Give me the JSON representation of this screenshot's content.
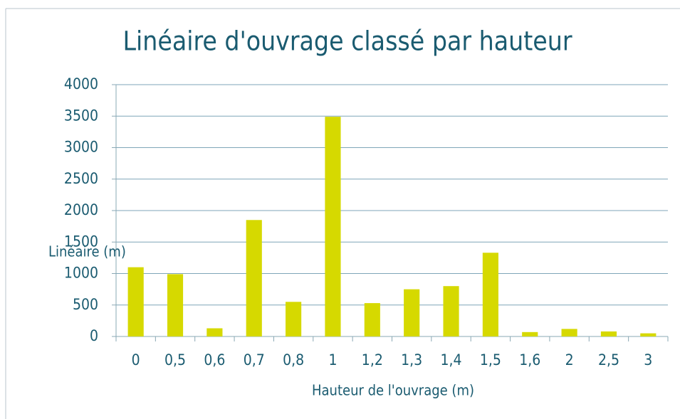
{
  "chart_data": {
    "type": "bar",
    "title": "Linéaire d'ouvrage classé par hauteur",
    "x_label": "Hauteur de l'ouvrage (m)",
    "y_label": "Linéaire (m)",
    "categories": [
      "0",
      "0,5",
      "0,6",
      "0,7",
      "0,8",
      "1",
      "1,2",
      "1,3",
      "1,4",
      "1,5",
      "1,6",
      "2",
      "2,5",
      "3"
    ],
    "values": [
      1100,
      990,
      130,
      1850,
      550,
      3490,
      530,
      750,
      800,
      1330,
      70,
      120,
      80,
      50
    ],
    "color": "#d6d900",
    "ylim": [
      0,
      4000
    ],
    "yticks": [
      0,
      500,
      1000,
      1500,
      2000,
      2500,
      3000,
      3500,
      4000
    ],
    "grid": true
  }
}
